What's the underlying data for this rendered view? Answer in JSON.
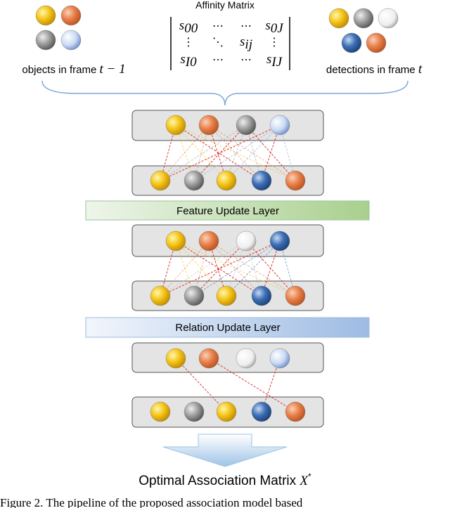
{
  "header": {
    "matrix_title": "Affinity Matrix",
    "matrix": [
      [
        {
          "base": "s",
          "sub": "00"
        },
        "⋯",
        "⋯",
        {
          "base": "s",
          "sub": "0J"
        }
      ],
      [
        "⋮",
        "⋱",
        {
          "base": "s",
          "sub": "ij"
        },
        "⋮"
      ],
      [
        {
          "base": "s",
          "sub": "I0"
        },
        "⋯",
        "⋯",
        {
          "base": "s",
          "sub": "IJ"
        }
      ]
    ],
    "left_label": {
      "text": "objects in frame ",
      "math": "t − 1"
    },
    "right_label": {
      "text": "detections in frame ",
      "math": "t"
    }
  },
  "layers": {
    "feature": "Feature  Update  Layer",
    "relation": "Relation  Update  Layer"
  },
  "output": {
    "text": "Optimal  Association  Matrix ",
    "math": "X",
    "sup": "*"
  },
  "caption": "Figure 2. The pipeline of the proposed association model based"
}
